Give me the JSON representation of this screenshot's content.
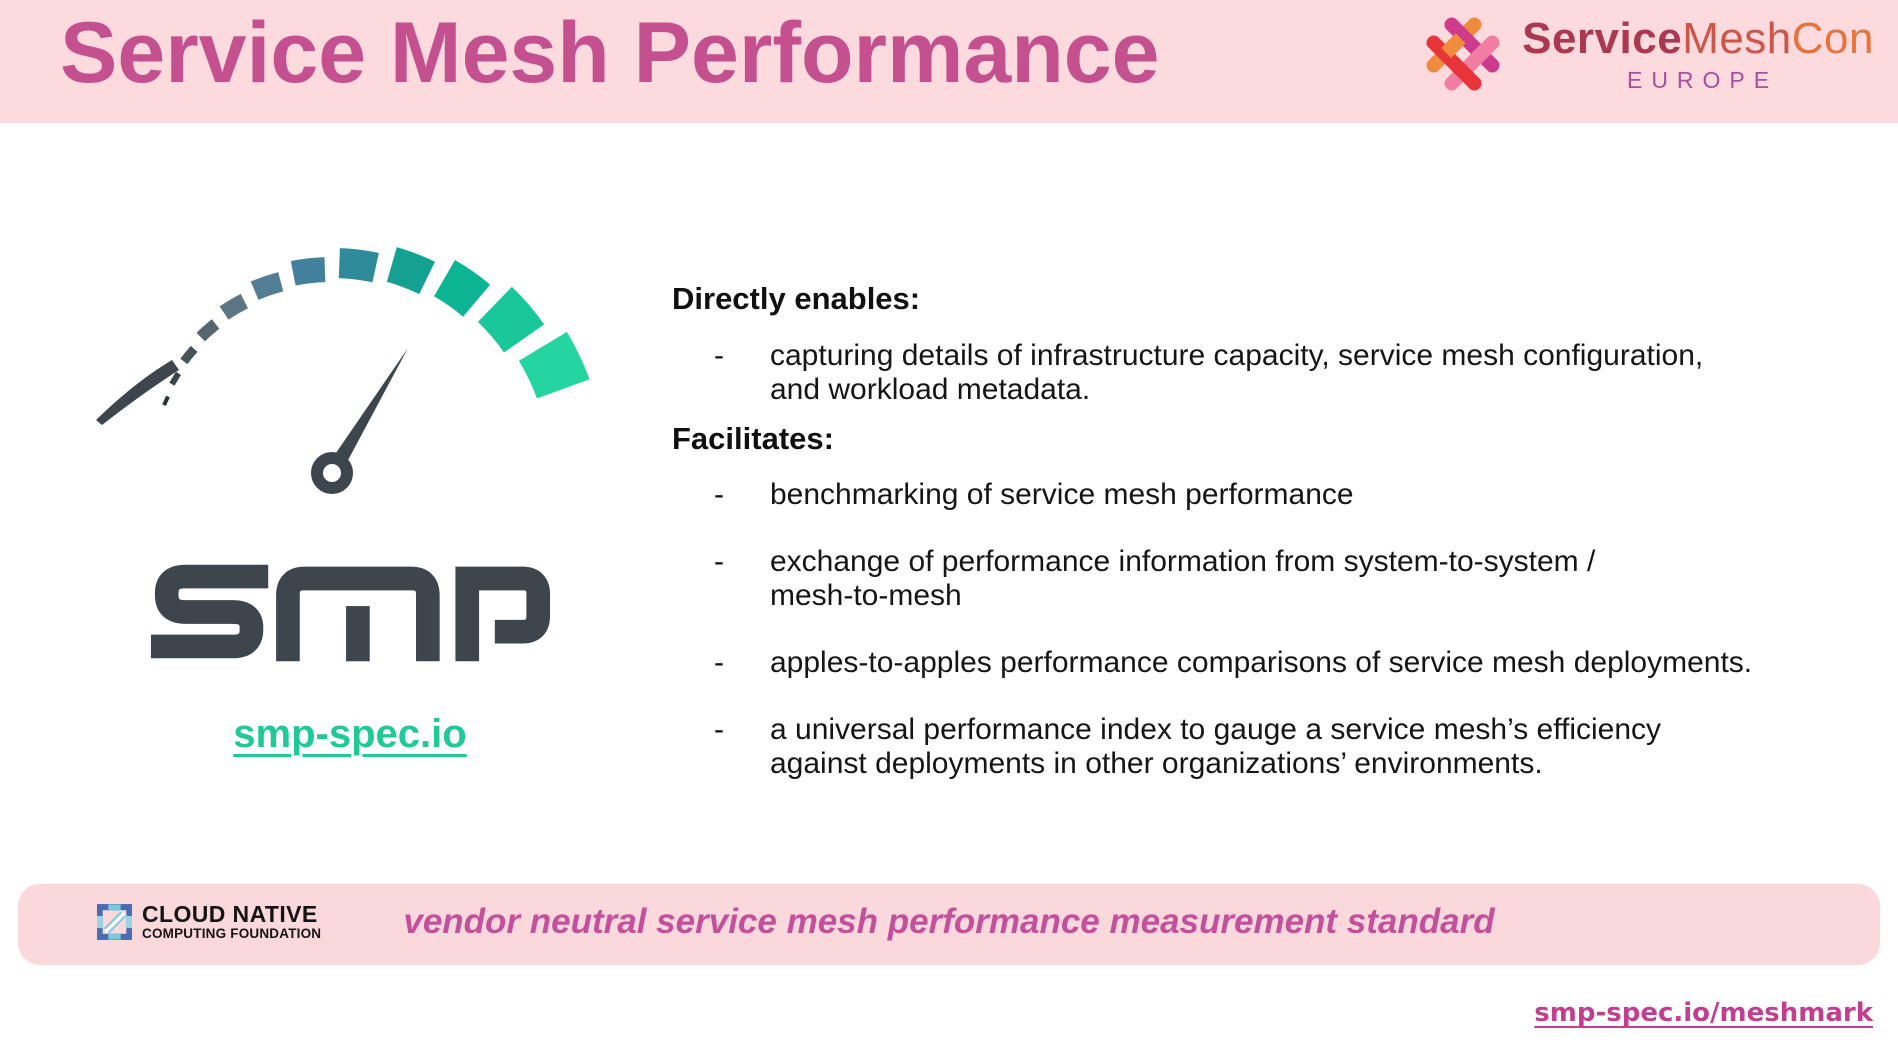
{
  "header": {
    "title": "Service Mesh Performance",
    "conference": {
      "part_service": "Service",
      "part_mesh": "Mesh",
      "part_con": "Con",
      "region": "EUROPE"
    }
  },
  "logo": {
    "wordmark": "SMP",
    "link": "smp-spec.io",
    "gauge_segments": [
      [
        158,
        155,
        183,
        4,
        "#2a3338"
      ],
      [
        151,
        147,
        186,
        6,
        "#39444a"
      ],
      [
        143,
        138,
        190,
        9,
        "#46545c"
      ],
      [
        134,
        128,
        195,
        12,
        "#54666f"
      ],
      [
        124,
        117,
        201,
        16,
        "#5b7684"
      ],
      [
        113,
        105,
        208,
        20,
        "#537e93"
      ],
      [
        101,
        92,
        216,
        25,
        "#43809d"
      ],
      [
        88,
        78,
        225,
        30,
        "#2f8b9a"
      ],
      [
        74,
        64,
        235,
        36,
        "#14a191"
      ],
      [
        60,
        50,
        246,
        42,
        "#0db493"
      ],
      [
        46,
        35,
        259,
        49,
        "#19c79b"
      ],
      [
        31,
        20,
        274,
        56,
        "#24d4a1"
      ]
    ]
  },
  "main": {
    "bullet_marker": "-",
    "sections": [
      {
        "heading": "Directly enables:",
        "bullets": [
          {
            "lines": [
              "capturing details of infrastructure capacity, service mesh configuration,",
              "and workload metadata."
            ]
          }
        ]
      },
      {
        "heading": "Facilitates:",
        "bullets": [
          {
            "lines": [
              "benchmarking of service mesh performance"
            ]
          },
          {
            "lines": [
              "exchange of performance information from system-to-system /",
              "mesh-to-mesh"
            ]
          },
          {
            "lines": [
              "apples-to-apples performance comparisons of service mesh deployments."
            ]
          },
          {
            "lines": [
              "a universal performance index to gauge a service mesh’s efficiency",
              "against deployments in other organizations’ environments."
            ]
          }
        ]
      }
    ]
  },
  "footer": {
    "cncf_line1": "CLOUD NATIVE",
    "cncf_line2": "COMPUTING FOUNDATION",
    "tagline": "vendor neutral service mesh performance measurement standard",
    "link": "smp-spec.io/meshmark"
  },
  "colors": {
    "header_bg": "#fcdade",
    "title": "#c45090",
    "banner_bg": "#fbd8db",
    "tagline": "#c4509d",
    "link_green": "#1fc998",
    "link_pink": "#c13f8e",
    "smp_ink": "#3d464d",
    "gauge_green": "#24d4a1",
    "cncf_blue": "#4a6cb2",
    "cncf_cyan": "#7cc8dc",
    "smc_service": "#ab3850",
    "smc_mesh": "#cb574b",
    "smc_con": "#e5743c",
    "smc_region": "#a94f9f"
  }
}
